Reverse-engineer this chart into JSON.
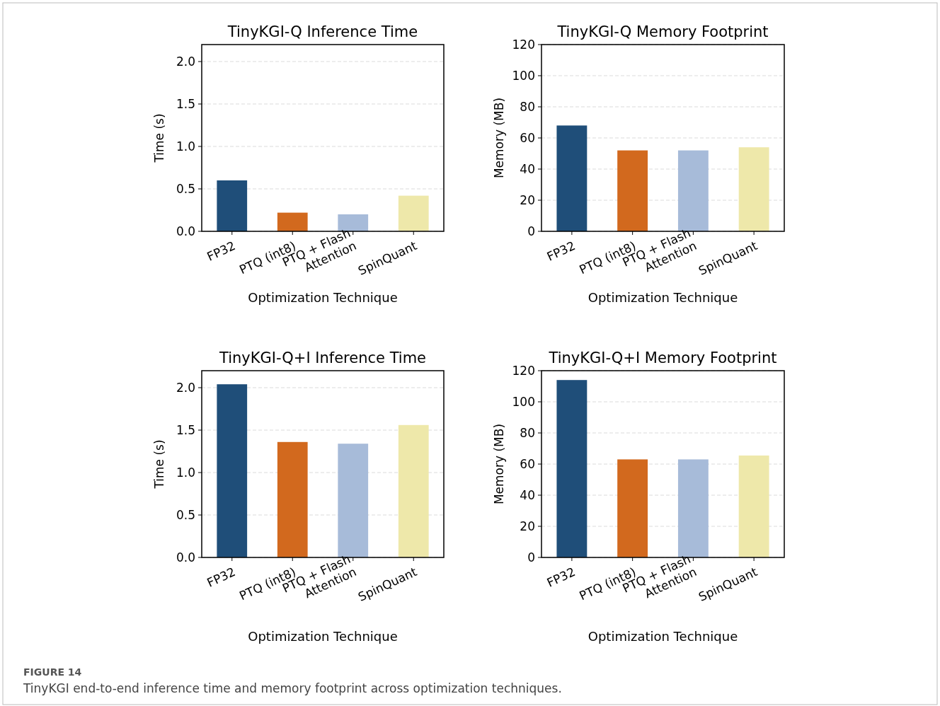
{
  "chart_data": [
    {
      "type": "bar",
      "title": "TinyKGI-Q Inference Time",
      "xlabel": "Optimization Technique",
      "ylabel": "Time (s)",
      "categories": [
        "FP32",
        "PTQ (int8)",
        "PTQ + Flash Attention",
        "SpinQuant"
      ],
      "values": [
        0.6,
        0.22,
        0.2,
        0.42
      ],
      "colors": [
        "#1f4e79",
        "#d2691e",
        "#a7bbd9",
        "#eee8aa"
      ],
      "ylim": [
        0,
        2.2
      ],
      "yticks": [
        {
          "value": 0,
          "label": "0.0"
        },
        {
          "value": 0.5,
          "label": "0.5"
        },
        {
          "value": 1,
          "label": "1.0"
        },
        {
          "value": 1.5,
          "label": "1.5"
        },
        {
          "value": 2,
          "label": "2.0"
        }
      ],
      "grid": "y",
      "annotations": [
        "FIGURE 14",
        "TinyKGI end-to-end inference time and memory footprint across optimization techniques."
      ]
    },
    {
      "type": "bar",
      "title": "TinyKGI-Q Memory Footprint",
      "xlabel": "Optimization Technique",
      "ylabel": "Memory (MB)",
      "categories": [
        "FP32",
        "PTQ (int8)",
        "PTQ + Flash Attention",
        "SpinQuant"
      ],
      "values": [
        68,
        52,
        52,
        54
      ],
      "colors": [
        "#1f4e79",
        "#d2691e",
        "#a7bbd9",
        "#eee8aa"
      ],
      "ylim": [
        0,
        120
      ],
      "yticks": [
        0,
        20,
        40,
        60,
        80,
        100,
        120
      ],
      "grid": "y"
    },
    {
      "type": "bar",
      "title": "TinyKGI-Q+I Inference Time",
      "xlabel": "Optimization Technique",
      "ylabel": "Time (s)",
      "categories": [
        "FP32",
        "PTQ (int8)",
        "PTQ + Flash Attention",
        "SpinQuant"
      ],
      "values": [
        2.04,
        1.36,
        1.34,
        1.56
      ],
      "colors": [
        "#1f4e79",
        "#d2691e",
        "#a7bbd9",
        "#eee8aa"
      ],
      "ylim": [
        0,
        2.2
      ],
      "yticks": [
        {
          "value": 0,
          "label": "0.0"
        },
        {
          "value": 0.5,
          "label": "0.5"
        },
        {
          "value": 1,
          "label": "1.0"
        },
        {
          "value": 1.5,
          "label": "1.5"
        },
        {
          "value": 2,
          "label": "2.0"
        }
      ],
      "grid": "y"
    },
    {
      "type": "bar",
      "title": "TinyKGI-Q+I Memory Footprint",
      "xlabel": "Optimization Technique",
      "ylabel": "Memory (MB)",
      "categories": [
        "FP32",
        "PTQ (int8)",
        "PTQ + Flash Attention",
        "SpinQuant"
      ],
      "values": [
        114,
        63,
        63,
        65.5
      ],
      "colors": [
        "#1f4e79",
        "#d2691e",
        "#a7bbd9",
        "#eee8aa"
      ],
      "ylim": [
        0,
        120
      ],
      "yticks": [
        0,
        20,
        40,
        60,
        80,
        100,
        120
      ],
      "grid": "y"
    }
  ]
}
